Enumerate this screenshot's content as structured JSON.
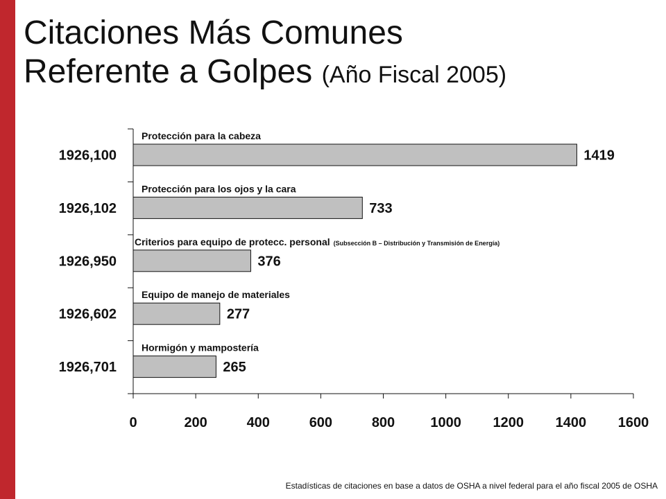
{
  "slide": {
    "accent_color": "#c0272d",
    "title_line1": "Citaciones Más Comunes",
    "title_line2": "Referente a Golpes",
    "title_paren": "(Año Fiscal 2005)",
    "footnote": "Estadísticas de citaciones en base a datos de OSHA a nivel federal para el año fiscal 2005 de OSHA"
  },
  "chart_data": {
    "type": "bar",
    "orientation": "horizontal",
    "title": "",
    "xlabel": "",
    "ylabel": "",
    "xlim": [
      0,
      1600
    ],
    "x_ticks": [
      "0",
      "200",
      "400",
      "600",
      "800",
      "1000",
      "1200",
      "1400",
      "1600"
    ],
    "grid": false,
    "bar_color": "#c0c0c0",
    "categories": [
      "1926,100",
      "1926,102",
      "1926,950",
      "1926,602",
      "1926,701"
    ],
    "descriptions": [
      {
        "text": "Protección para la cabeza",
        "note": ""
      },
      {
        "text": "Protección para los ojos y la cara",
        "note": ""
      },
      {
        "text": "Criterios para  equipo de protecc. personal",
        "note": "(Subsección B – Distribución y Transmisión de Energía)"
      },
      {
        "text": "Equipo de manejo de materiales",
        "note": ""
      },
      {
        "text": "Hormigón y mampostería",
        "note": ""
      }
    ],
    "values": [
      1419,
      733,
      376,
      277,
      265
    ],
    "value_labels": [
      "1419",
      "733",
      "376",
      "277",
      "265"
    ]
  }
}
